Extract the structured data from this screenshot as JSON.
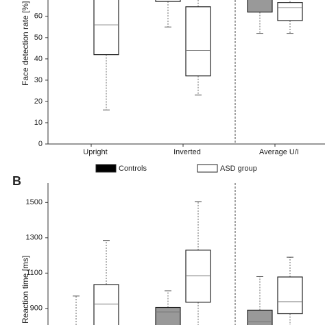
{
  "chart_data": [
    {
      "type": "box",
      "ylabel": "Face detection rate [%]",
      "categories": [
        "Upright",
        "Inverted",
        "Average U/I"
      ],
      "ylim": [
        0,
        68
      ],
      "yticks": [
        0,
        10,
        20,
        30,
        40,
        50,
        60
      ],
      "legend": true,
      "series": [
        {
          "name": "Controls",
          "color": "#000000",
          "box_colors": [
            "#ffffff",
            "#ffffff",
            "#999999"
          ],
          "boxes": [
            {
              "whisker_low": null,
              "q1": null,
              "median": null,
              "q3": null,
              "whisker_high": null
            },
            {
              "whisker_low": 55,
              "q1": 67,
              "median": null,
              "q3": null,
              "whisker_high": null
            },
            {
              "whisker_low": 52,
              "q1": 62,
              "median": null,
              "q3": null,
              "whisker_high": null
            }
          ]
        },
        {
          "name": "ASD group",
          "color": "#ffffff",
          "box_colors": [
            "#ffffff",
            "#ffffff",
            "#ffffff"
          ],
          "boxes": [
            {
              "whisker_low": 16,
              "q1": 42,
              "median": 56,
              "q3": null,
              "whisker_high": null
            },
            {
              "whisker_low": 23,
              "q1": 32,
              "median": 44,
              "q3": 64.5,
              "whisker_high": null
            },
            {
              "whisker_low": 52,
              "q1": 58,
              "median": 64,
              "q3": 66.5,
              "whisker_high": null
            }
          ]
        }
      ]
    },
    {
      "type": "box",
      "panel_label": "B",
      "ylabel": "Reaction time [ms]",
      "ylim": [
        806,
        1610
      ],
      "yticks": [
        900,
        1100,
        1300,
        1500
      ],
      "series": [
        {
          "box_colors": [
            "#999999",
            "#999999",
            "#999999"
          ],
          "boxes": [
            {
              "whisker_low": null,
              "q1": null,
              "median": null,
              "q3": null,
              "whisker_high": 970
            },
            {
              "whisker_low": null,
              "q1": null,
              "median": 880,
              "q3": 905,
              "whisker_high": 1000
            },
            {
              "whisker_low": null,
              "q1": null,
              "median": 825,
              "q3": 890,
              "whisker_high": 1080
            }
          ]
        },
        {
          "box_colors": [
            "#ffffff",
            "#ffffff",
            "#ffffff"
          ],
          "boxes": [
            {
              "whisker_low": null,
              "q1": null,
              "median": 925,
              "q3": 1035,
              "whisker_high": 1285
            },
            {
              "whisker_low": null,
              "q1": 935,
              "median": 1085,
              "q3": 1230,
              "whisker_high": 1505
            },
            {
              "whisker_low": null,
              "q1": 870,
              "median": 938,
              "q3": 1078,
              "whisker_high": 1190
            }
          ]
        }
      ]
    }
  ]
}
